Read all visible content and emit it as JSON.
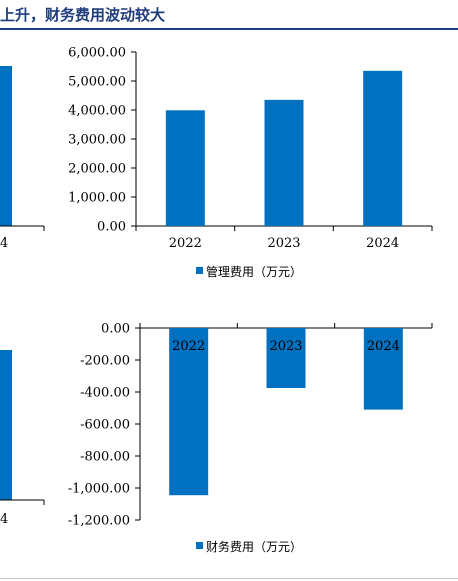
{
  "page": {
    "title": "上升，财务费用波动较大",
    "accent_color": "#1f3d7a"
  },
  "left_fragments": {
    "top_tick_label": "4",
    "bottom_tick_label": "4",
    "bar_color": "#0070c0"
  },
  "chart_data": [
    {
      "type": "bar",
      "title": "",
      "categories": [
        "2022",
        "2023",
        "2024"
      ],
      "series": [
        {
          "name": "管理费用（万元）",
          "values": [
            3990,
            4350,
            5350
          ],
          "color": "#0070c0"
        }
      ],
      "xlabel": "",
      "ylabel": "",
      "ylim": [
        0,
        6000
      ],
      "yticks": [
        0,
        1000,
        2000,
        3000,
        4000,
        5000,
        6000
      ],
      "ytick_labels": [
        "0.00",
        "1,000.00",
        "2,000.00",
        "3,000.00",
        "4,000.00",
        "5,000.00",
        "6,000.00"
      ],
      "grid": false,
      "legend": "bottom-center"
    },
    {
      "type": "bar",
      "title": "",
      "categories": [
        "2022",
        "2023",
        "2024"
      ],
      "series": [
        {
          "name": "财务费用（万元）",
          "values": [
            -1045,
            -375,
            -510
          ],
          "color": "#0070c0"
        }
      ],
      "xlabel": "",
      "ylabel": "",
      "ylim": [
        -1200,
        0
      ],
      "yticks": [
        0,
        -200,
        -400,
        -600,
        -800,
        -1000,
        -1200
      ],
      "ytick_labels": [
        "0.00",
        "-200.00",
        "-400.00",
        "-600.00",
        "-800.00",
        "-1,000.00",
        "-1,200.00"
      ],
      "grid": false,
      "legend": "bottom-center"
    }
  ]
}
